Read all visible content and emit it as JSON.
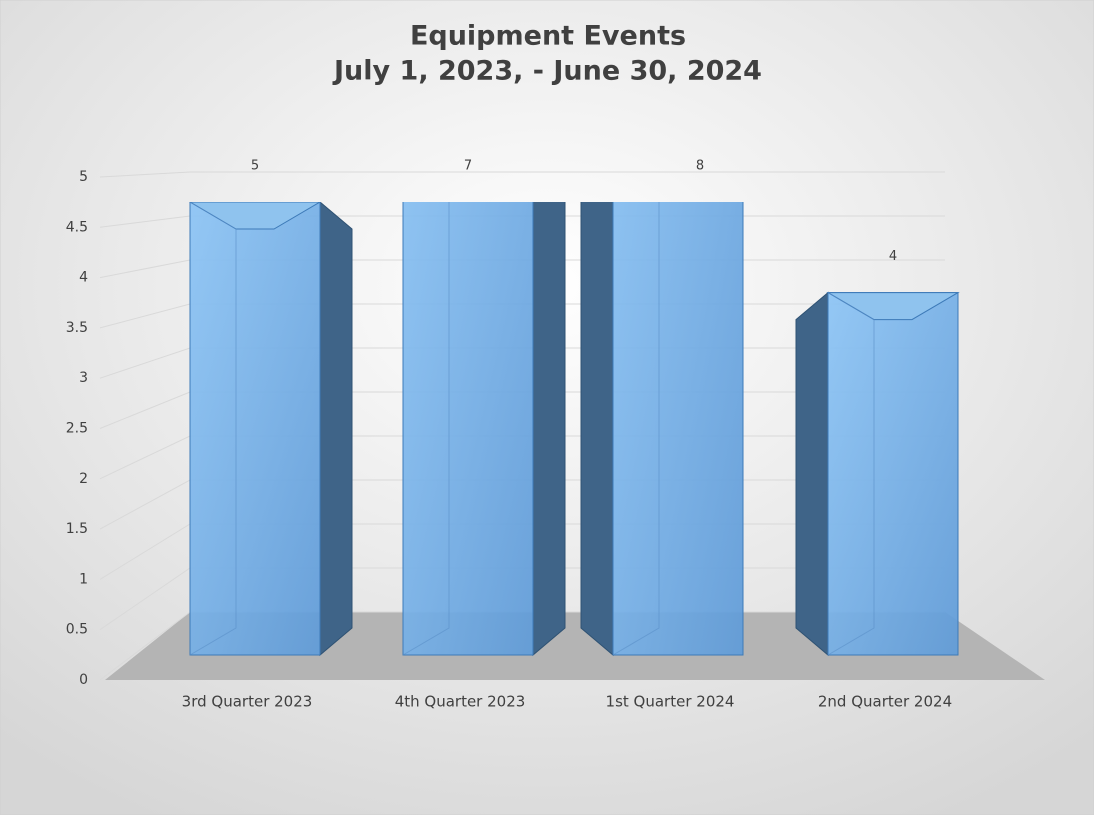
{
  "chart_data": {
    "type": "bar3d",
    "title": "Equipment Events",
    "subtitle": "July 1, 2023, - June 30, 2024",
    "categories": [
      "3rd Quarter 2023",
      "4th Quarter 2023",
      "1st Quarter 2024",
      "2nd Quarter 2024"
    ],
    "values": [
      5,
      7,
      8,
      4
    ],
    "color": "#6fa8dc",
    "ylim": [
      0,
      5
    ],
    "yticks": [
      0,
      0.5,
      1,
      1.5,
      2,
      2.5,
      3,
      3.5,
      4,
      4.5,
      5
    ],
    "grid": true
  }
}
